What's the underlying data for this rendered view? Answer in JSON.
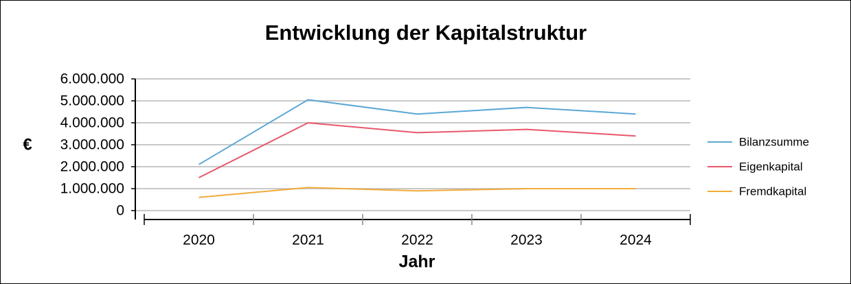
{
  "chart_data": {
    "type": "line",
    "title": "Entwicklung der Kapitalstruktur",
    "x_label": "Jahr",
    "y_label": "€",
    "categories": [
      "2020",
      "2021",
      "2022",
      "2023",
      "2024"
    ],
    "series": [
      {
        "name": "Bilanzsumme",
        "color": "#5aa7d5",
        "values": [
          2100000,
          5050000,
          4400000,
          4700000,
          4400000
        ]
      },
      {
        "name": "Eigenkapital",
        "color": "#e8566b",
        "values": [
          1500000,
          4000000,
          3550000,
          3700000,
          3400000
        ]
      },
      {
        "name": "Fremdkapital",
        "color": "#f0ab3a",
        "values": [
          600000,
          1050000,
          900000,
          1000000,
          1000000
        ]
      }
    ],
    "ylim": [
      0,
      6000000
    ],
    "yticks": [
      0,
      {
        "value": 1000000,
        "label": "1.000.000"
      },
      {
        "value": 2000000,
        "label": "2.000.000"
      },
      {
        "value": 3000000,
        "label": "3.000.000"
      },
      {
        "value": 4000000,
        "label": "4.000.000"
      },
      {
        "value": 5000000,
        "label": "5.000.000"
      },
      {
        "value": 6000000,
        "label": "6.000.000"
      }
    ],
    "grid": true,
    "legend": "right"
  }
}
